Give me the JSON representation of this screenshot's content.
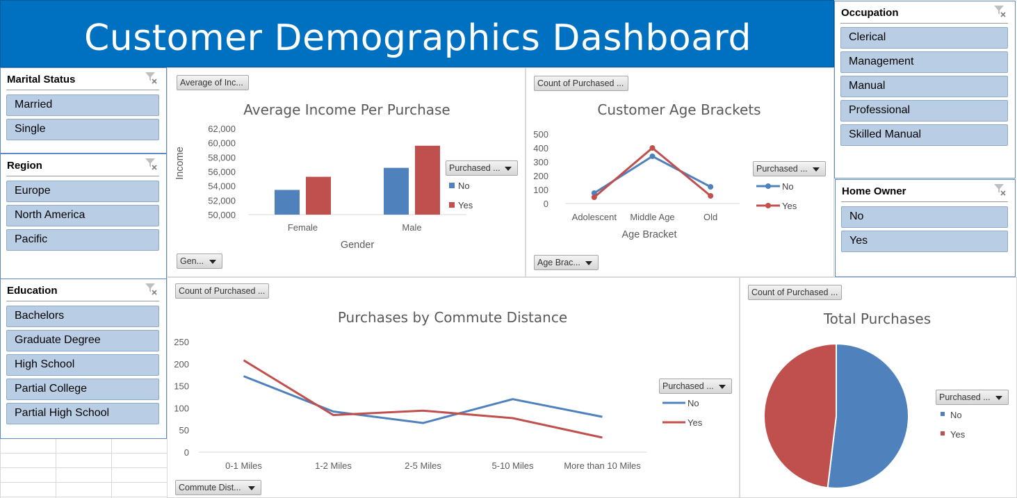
{
  "header": {
    "title": "Customer Demographics Dashboard"
  },
  "slicers": {
    "marital_status": {
      "title": "Marital Status",
      "items": [
        "Married",
        "Single"
      ]
    },
    "region": {
      "title": "Region",
      "items": [
        "Europe",
        "North America",
        "Pacific"
      ]
    },
    "education": {
      "title": "Education",
      "items": [
        "Bachelors",
        "Graduate Degree",
        "High School",
        "Partial College",
        "Partial High School"
      ]
    },
    "occupation": {
      "title": "Occupation",
      "items": [
        "Clerical",
        "Management",
        "Manual",
        "Professional",
        "Skilled Manual"
      ]
    },
    "home_owner": {
      "title": "Home Owner",
      "items": [
        "No",
        "Yes"
      ]
    }
  },
  "field_buttons": {
    "income_value": "Average of Inc...",
    "income_axis": "Gen...",
    "income_legend": "Purchased ...",
    "age_value": "Count of Purchased ...",
    "age_axis": "Age Brac...",
    "age_legend": "Purchased ...",
    "commute_value": "Count of Purchased ...",
    "commute_axis": "Commute Dist...",
    "commute_legend": "Purchased ...",
    "total_value": "Count of Purchased ...",
    "total_legend": "Purchased ..."
  },
  "colors": {
    "no": "#4f81bd",
    "yes": "#c0504d",
    "banner": "#0070c0",
    "slicer_item": "#b9cde5"
  },
  "chart_data": [
    {
      "id": "income",
      "type": "bar",
      "title": "Average Income Per Purchase",
      "xlabel": "Gender",
      "ylabel": "Income",
      "categories": [
        "Female",
        "Male"
      ],
      "series": [
        {
          "name": "No",
          "values": [
            53440,
            56520
          ]
        },
        {
          "name": "Yes",
          "values": [
            55270,
            59600
          ]
        }
      ],
      "ylim": [
        50000,
        62000
      ],
      "yticks": [
        50000,
        52000,
        54000,
        56000,
        58000,
        60000,
        62000
      ],
      "ytick_labels": [
        "50,000",
        "52,000",
        "54,000",
        "56,000",
        "58,000",
        "60,000",
        "62,000"
      ],
      "legend": "right",
      "grid": false
    },
    {
      "id": "age",
      "type": "line",
      "title": "Customer Age Brackets",
      "xlabel": "Age Bracket",
      "ylabel": "",
      "categories": [
        "Adolescent",
        "Middle Age",
        "Old"
      ],
      "series": [
        {
          "name": "No",
          "values": [
            75,
            340,
            120
          ]
        },
        {
          "name": "Yes",
          "values": [
            45,
            400,
            55
          ]
        }
      ],
      "ylim": [
        0,
        500
      ],
      "yticks": [
        0,
        100,
        200,
        300,
        400,
        500
      ],
      "ytick_labels": [
        "0",
        "100",
        "200",
        "300",
        "400",
        "500"
      ],
      "markers": true,
      "legend": "right",
      "grid": false
    },
    {
      "id": "commute",
      "type": "line",
      "title": "Purchases by Commute Distance",
      "xlabel": "",
      "ylabel": "",
      "categories": [
        "0-1 Miles",
        "1-2 Miles",
        "2-5 Miles",
        "5-10 Miles",
        "More than 10 Miles"
      ],
      "series": [
        {
          "name": "No",
          "values": [
            172,
            92,
            66,
            120,
            80
          ]
        },
        {
          "name": "Yes",
          "values": [
            208,
            84,
            94,
            77,
            33
          ]
        }
      ],
      "ylim": [
        0,
        250
      ],
      "yticks": [
        0,
        50,
        100,
        150,
        200,
        250
      ],
      "ytick_labels": [
        "0",
        "50",
        "100",
        "150",
        "200",
        "250"
      ],
      "markers": false,
      "legend": "right",
      "grid": false
    },
    {
      "id": "total",
      "type": "pie",
      "title": "Total Purchases",
      "categories": [
        "No",
        "Yes"
      ],
      "values": [
        519,
        481
      ],
      "legend": "right"
    }
  ]
}
